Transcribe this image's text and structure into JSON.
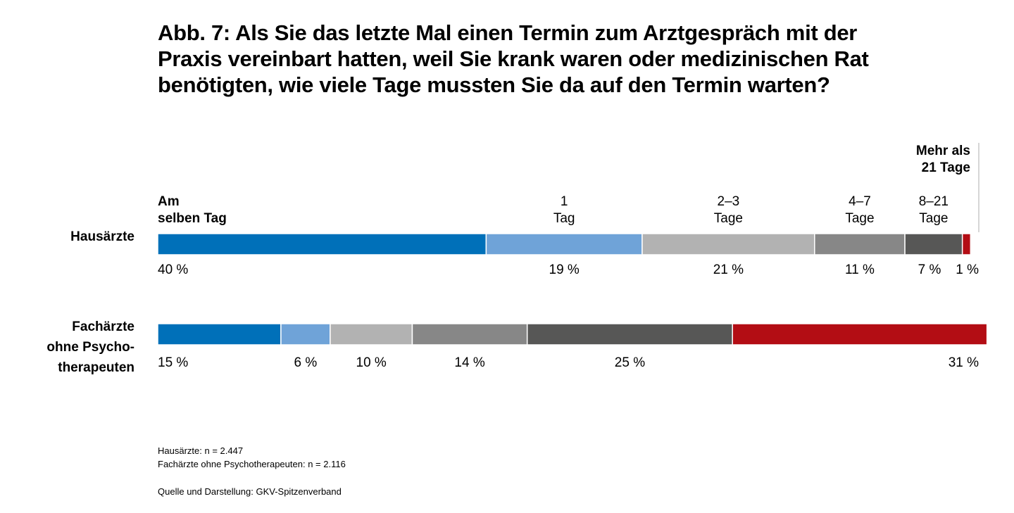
{
  "title_lines": [
    "Abb. 7: Als Sie das letzte Mal einen Termin zum Arztgespräch mit der",
    "Praxis vereinbart hatten, weil Sie krank waren oder medizinischen Rat",
    "benötigten, wie viele Tage mussten Sie da auf den Termin warten?"
  ],
  "notes": [
    "Hausärzte: n = 2.447",
    "Fachärzte ohne Psychotherapeuten: n = 2.116"
  ],
  "source": "Quelle und Darstellung: GKV-Spitzenverband",
  "chart_data": {
    "type": "bar",
    "orientation": "horizontal",
    "stacked": true,
    "xlim": [
      0,
      100
    ],
    "unit": "%",
    "categories": [
      [
        "Am",
        "selben Tag"
      ],
      [
        "1",
        "Tag"
      ],
      [
        "2–3",
        "Tage"
      ],
      [
        "4–7",
        "Tage"
      ],
      [
        "8–21",
        "Tage"
      ],
      [
        "Mehr als",
        "21 Tage"
      ]
    ],
    "colors": [
      "#0070b9",
      "#6fa3d8",
      "#b2b2b2",
      "#878787",
      "#575756",
      "#b30d14"
    ],
    "series": [
      {
        "name": "Hausärzte",
        "label_lines": [
          "Hausärzte"
        ],
        "values": [
          40,
          19,
          21,
          11,
          7,
          1
        ],
        "labels": [
          "40 %",
          "19 %",
          "21 %",
          "11 %",
          "7 %",
          "1 %"
        ]
      },
      {
        "name": "Fachärzte ohne Psychotherapeuten",
        "label_lines": [
          "Fachärzte",
          "ohne Psycho-",
          "therapeuten"
        ],
        "values": [
          15,
          6,
          10,
          14,
          25,
          31
        ],
        "labels": [
          "15 %",
          "6 %",
          "10 %",
          "14 %",
          "25 %",
          "31 %"
        ]
      }
    ]
  }
}
